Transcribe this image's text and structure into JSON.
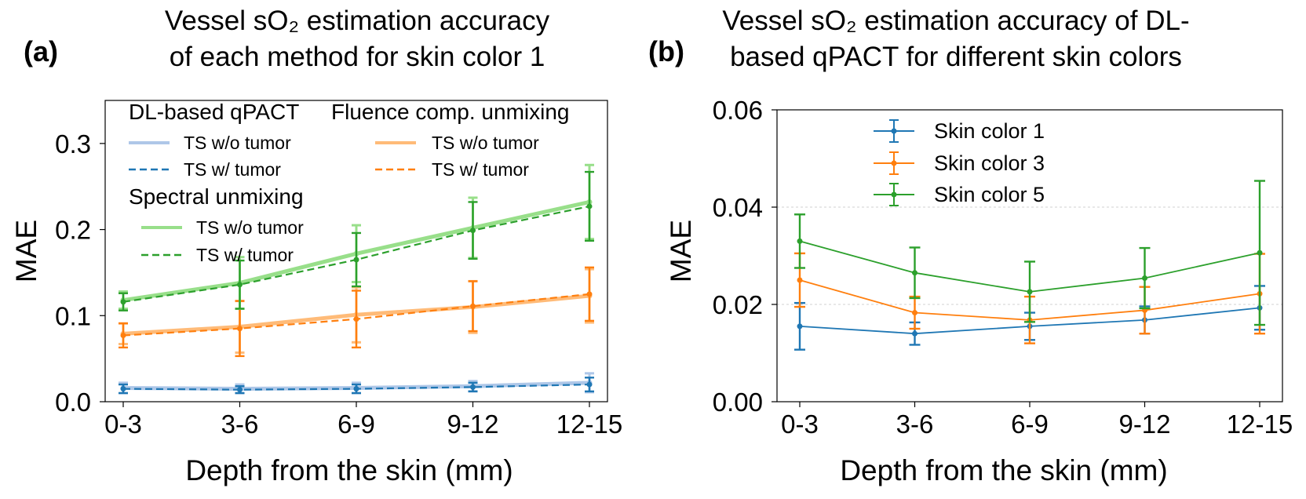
{
  "colors": {
    "blue": "#1f77b4",
    "blue_light": "#aec7e8",
    "orange": "#ff7f0e",
    "orange_light": "#ffbb78",
    "green": "#2ca02c",
    "green_light": "#98df8a"
  },
  "chart_data": [
    {
      "type": "line",
      "panel_label": "(a)",
      "title_lines": [
        "Vessel sO₂ estimation accuracy",
        "of each method for skin color 1"
      ],
      "xlabel": "Depth from the skin (mm)",
      "ylabel": "MAE",
      "categories": [
        "0-3",
        "3-6",
        "6-9",
        "9-12",
        "12-15"
      ],
      "ylim": [
        0,
        0.35
      ],
      "yticks": [
        0.0,
        0.1,
        0.2,
        0.3
      ],
      "ytick_labels": [
        "0.0",
        "0.1",
        "0.2",
        "0.3"
      ],
      "legend_groups": [
        {
          "title": "DL-based qPACT",
          "items": [
            "TS w/o tumor",
            "TS w/ tumor"
          ]
        },
        {
          "title": "Fluence comp. unmixing",
          "items": [
            "TS w/o tumor",
            "TS w/ tumor"
          ]
        },
        {
          "title": "Spectral unmixing",
          "items": [
            "TS w/o tumor",
            "TS w/ tumor"
          ]
        }
      ],
      "series": [
        {
          "name": "DL-based qPACT TS w/o tumor",
          "color": "blue_light",
          "style": "solid-thick",
          "values": [
            0.016,
            0.015,
            0.016,
            0.018,
            0.022
          ],
          "err": [
            0.006,
            0.005,
            0.006,
            0.006,
            0.011
          ]
        },
        {
          "name": "DL-based qPACT TS w/ tumor",
          "color": "blue",
          "style": "dashed",
          "values": [
            0.015,
            0.014,
            0.015,
            0.017,
            0.02
          ],
          "err": [
            0.005,
            0.004,
            0.005,
            0.005,
            0.008
          ]
        },
        {
          "name": "Fluence comp. unmixing TS w/o tumor",
          "color": "orange_light",
          "style": "solid-thick",
          "values": [
            0.079,
            0.087,
            0.101,
            0.11,
            0.123
          ],
          "err": [
            0.012,
            0.03,
            0.032,
            0.03,
            0.031
          ]
        },
        {
          "name": "Fluence comp. unmixing TS w/ tumor",
          "color": "orange",
          "style": "dashed",
          "values": [
            0.077,
            0.085,
            0.096,
            0.111,
            0.125
          ],
          "err": [
            0.014,
            0.032,
            0.033,
            0.029,
            0.031
          ]
        },
        {
          "name": "Spectral unmixing TS w/o tumor",
          "color": "green_light",
          "style": "solid-thick",
          "values": [
            0.118,
            0.138,
            0.172,
            0.202,
            0.232
          ],
          "err": [
            0.01,
            0.03,
            0.033,
            0.035,
            0.043
          ]
        },
        {
          "name": "Spectral unmixing TS w/ tumor",
          "color": "green",
          "style": "dashed",
          "values": [
            0.116,
            0.136,
            0.165,
            0.199,
            0.227
          ],
          "err": [
            0.01,
            0.028,
            0.031,
            0.033,
            0.04
          ]
        }
      ]
    },
    {
      "type": "line",
      "panel_label": "(b)",
      "title_lines": [
        "Vessel sO₂ estimation accuracy of DL-",
        "based qPACT for different skin colors"
      ],
      "xlabel": "Depth from the skin (mm)",
      "ylabel": "MAE",
      "categories": [
        "0-3",
        "3-6",
        "6-9",
        "9-12",
        "12-15"
      ],
      "ylim": [
        0,
        0.06
      ],
      "yticks": [
        0.0,
        0.02,
        0.04,
        0.06
      ],
      "ytick_labels": [
        "0.00",
        "0.02",
        "0.04",
        "0.06"
      ],
      "grid": true,
      "series": [
        {
          "name": "Skin color 1",
          "color": "blue",
          "values": [
            0.0155,
            0.014,
            0.0155,
            0.0168,
            0.0193
          ],
          "err": [
            0.0048,
            0.0023,
            0.0028,
            0.0028,
            0.0045
          ]
        },
        {
          "name": "Skin color 3",
          "color": "orange",
          "values": [
            0.025,
            0.0183,
            0.0168,
            0.0188,
            0.0222
          ],
          "err": [
            0.0055,
            0.0033,
            0.0048,
            0.0048,
            0.0082
          ]
        },
        {
          "name": "Skin color 5",
          "color": "green",
          "values": [
            0.033,
            0.0265,
            0.0226,
            0.0254,
            0.0306
          ],
          "err": [
            0.0055,
            0.0052,
            0.0062,
            0.0062,
            0.0148
          ]
        }
      ]
    }
  ]
}
